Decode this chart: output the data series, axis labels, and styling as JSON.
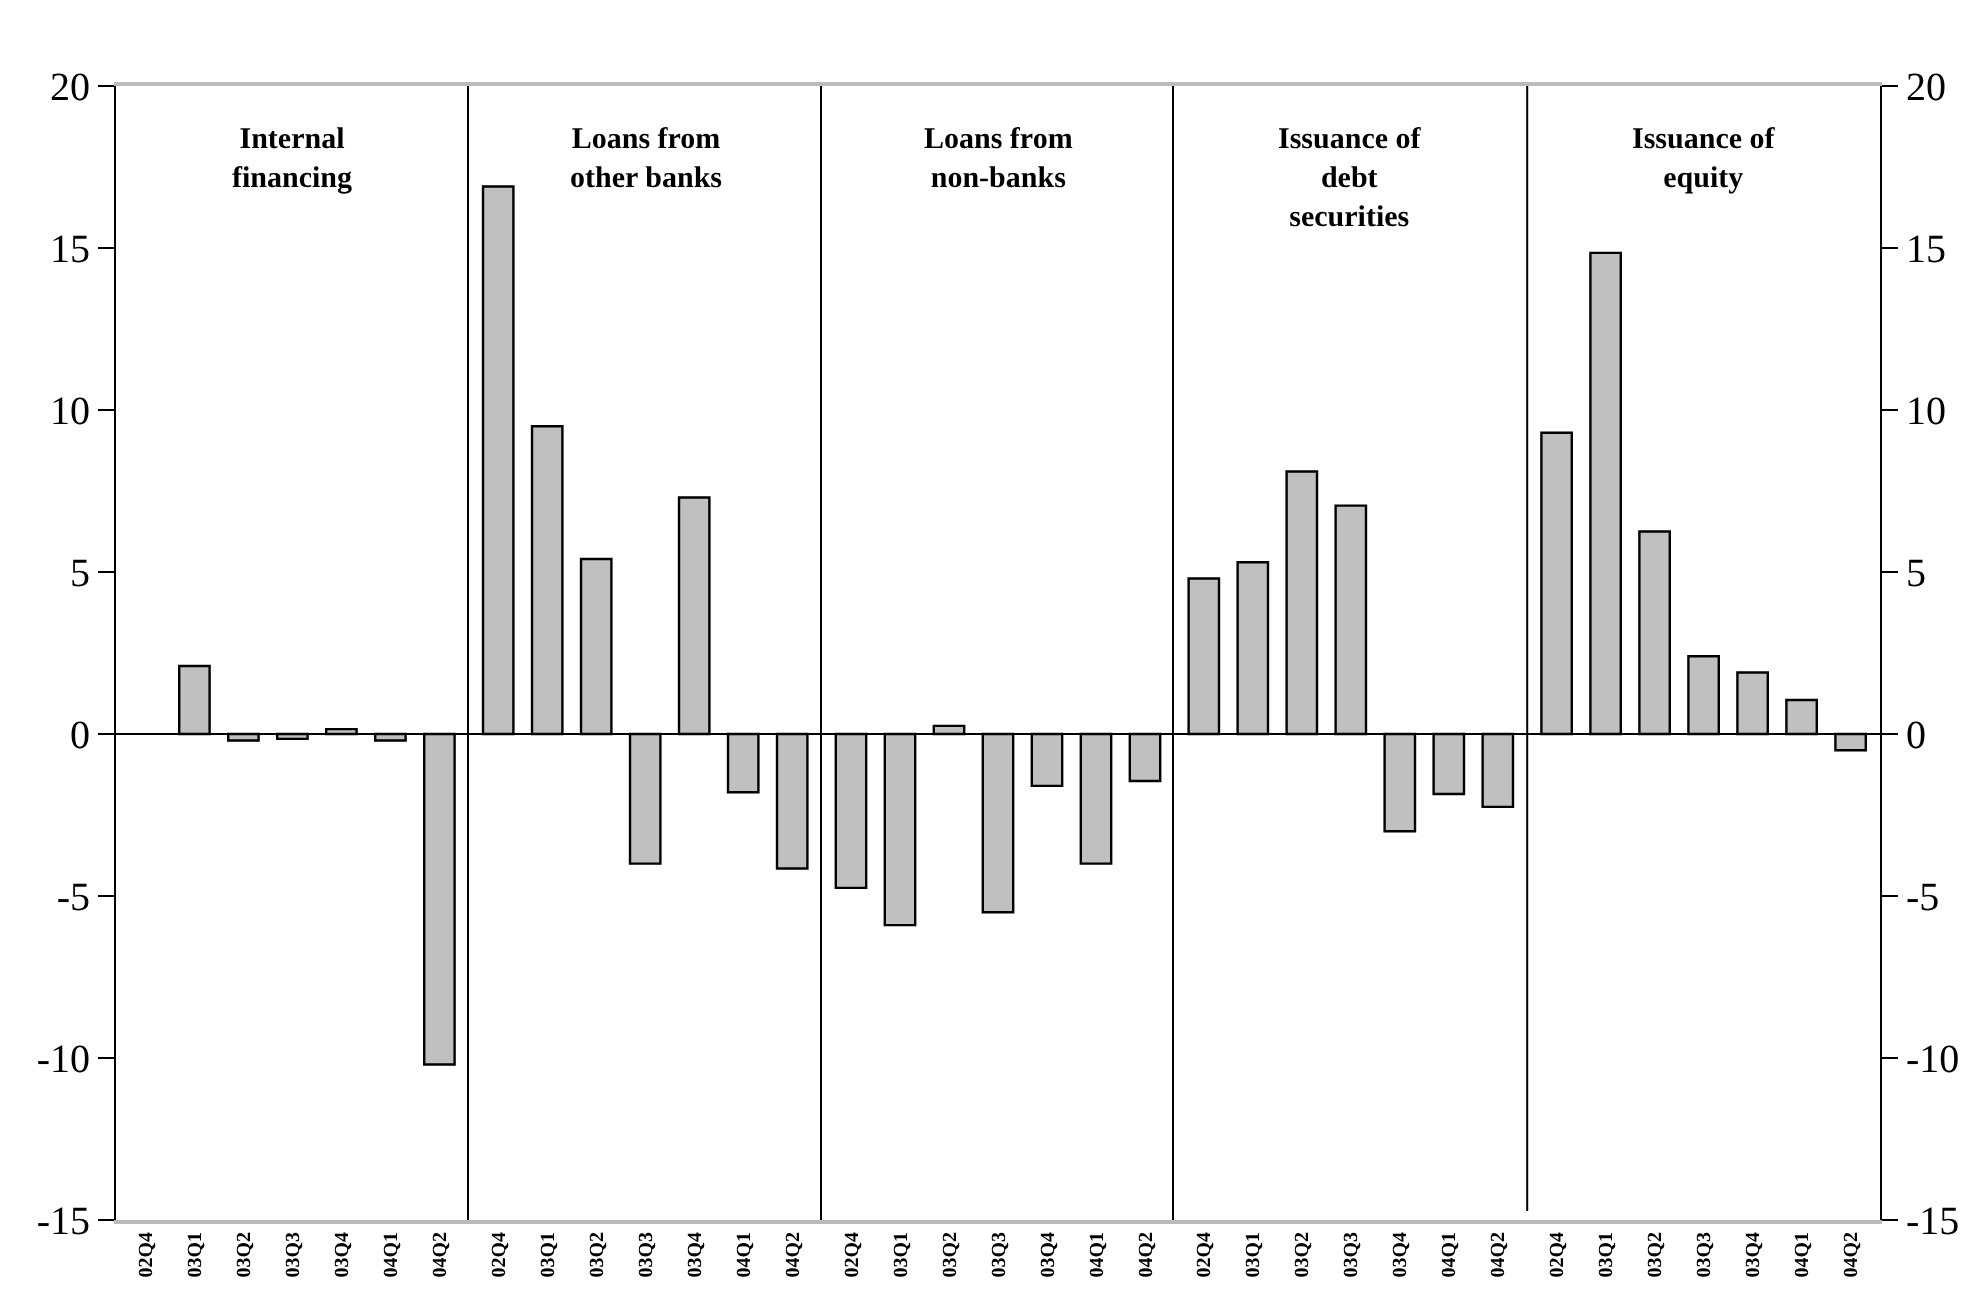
{
  "chart_data": [
    {
      "type": "bar",
      "title": "Internal\nfinancing",
      "categories": [
        "02Q4",
        "03Q1",
        "03Q2",
        "03Q3",
        "03Q4",
        "04Q1",
        "04Q2"
      ],
      "values": [
        null,
        2.1,
        -0.2,
        -0.15,
        0.15,
        -0.2,
        -10.2
      ],
      "color": "#c0c0c0",
      "ylim": [
        -15,
        20
      ],
      "yticks": [
        -15,
        -10,
        -5,
        0,
        5,
        10,
        15,
        20
      ]
    },
    {
      "type": "bar",
      "title": "Loans from\nother banks",
      "categories": [
        "02Q4",
        "03Q1",
        "03Q2",
        "03Q3",
        "03Q4",
        "04Q1",
        "04Q2"
      ],
      "values": [
        16.9,
        9.5,
        5.4,
        -4.0,
        7.3,
        -1.8,
        -4.15
      ],
      "color": "#c0c0c0",
      "ylim": [
        -15,
        20
      ],
      "yticks": [
        -15,
        -10,
        -5,
        0,
        5,
        10,
        15,
        20
      ],
      "tick_labels": "x"
    },
    {
      "type": "bar",
      "title": "Loans from\nnon-banks",
      "categories": [
        "02Q4",
        "03Q1",
        "03Q2",
        "03Q3",
        "03Q4",
        "04Q1",
        "04Q2"
      ],
      "values": [
        -4.75,
        -5.9,
        0.25,
        -5.5,
        -1.6,
        -4.0,
        -1.45
      ],
      "color": "#c0c0c0",
      "ylim": [
        -15,
        20
      ],
      "yticks": [
        -15,
        -10,
        -5,
        0,
        5,
        10,
        15,
        20
      ],
      "tick_labels": "x"
    },
    {
      "type": "bar",
      "title": "Issuance of\ndebt\nsecurities",
      "categories": [
        "02Q4",
        "03Q1",
        "03Q2",
        "03Q3",
        "03Q4",
        "04Q1",
        "04Q2"
      ],
      "values": [
        4.8,
        5.3,
        8.1,
        7.05,
        -3.0,
        -1.85,
        -2.25
      ],
      "color": "#c0c0c0",
      "ylim": [
        -15,
        20
      ],
      "yticks": [
        -15,
        -10,
        -5,
        0,
        5,
        10,
        15,
        20
      ],
      "tick_labels": "x"
    },
    {
      "type": "bar",
      "title": "Issuance of\nequity",
      "categories": [
        "02Q4",
        "03Q1",
        "03Q2",
        "03Q3",
        "03Q4",
        "04Q1",
        "04Q2"
      ],
      "values": [
        9.3,
        14.85,
        6.25,
        2.4,
        1.9,
        1.05,
        -0.5
      ],
      "color": "#c0c0c0",
      "ylim": [
        -15,
        20
      ],
      "yticks": [
        -15,
        -10,
        -5,
        0,
        5,
        10,
        15,
        20
      ]
    }
  ]
}
